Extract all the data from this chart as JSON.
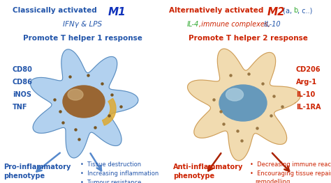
{
  "title_left_normal": "Classically activated ",
  "title_left_bold": "M1",
  "title_left_color": "#2255aa",
  "title_right_normal": "Alternatively activated ",
  "title_right_bold": "M2",
  "title_right_suffix_parts": [
    " (a, ",
    "b",
    ", c..)"
  ],
  "title_right_suffix_colors": [
    "#2255aa",
    "#33aa33",
    "#2255aa"
  ],
  "title_right_color": "#cc2200",
  "subtitle_left": "IFNγ & LPS",
  "subtitle_left_color": "#2255aa",
  "subtitle_right_parts": [
    "IL-4",
    ",immune complexes,",
    " IL-10"
  ],
  "subtitle_right_colors": [
    "#33aa33",
    "#cc2200",
    "#2255aa"
  ],
  "promote_left": "Promote T helper 1 response",
  "promote_left_color": "#2255aa",
  "promote_right": "Promote T helper 2 response",
  "promote_right_color": "#cc2200",
  "markers_left": [
    "CD80",
    "CD86",
    "iNOS",
    "TNF"
  ],
  "markers_left_color": "#2255aa",
  "markers_right": [
    "CD206",
    "Arg-1",
    "IL-10",
    "IL-1RA"
  ],
  "markers_right_color": "#cc2200",
  "phenotype_left_line1": "Pro-inflammatory",
  "phenotype_left_line2": "phenotype",
  "phenotype_left_color": "#2255aa",
  "phenotype_right_line1": "Anti-inflammatory",
  "phenotype_right_line2": "phenotype",
  "phenotype_right_color": "#cc2200",
  "effects_left": [
    "Tissue destruction",
    "Increasing inflammation",
    "Tumour resistance"
  ],
  "effects_left_color": "#2255aa",
  "effects_right": [
    "Decreasing immune reactions",
    "Encouraging tissue repair and",
    "remodelling"
  ],
  "effects_right_color": "#cc2200",
  "cell1_body_color": "#aaccee",
  "cell1_outline_color": "#5588bb",
  "cell1_nucleus_color": "#996633",
  "cell1_nucleus_hi_color": "#ccaa77",
  "cell1_golgi_color": "#ddaa33",
  "cell1_dot_color": "#775522",
  "cell2_body_color": "#f0d8a8",
  "cell2_outline_color": "#cc9955",
  "cell2_nucleus_color": "#6699bb",
  "cell2_nucleus_hi_color": "#aaccdd",
  "cell2_dot_color": "#997744",
  "arrow_left_color": "#5588cc",
  "arrow_right_color": "#aa2200",
  "bg_color": "#ffffff"
}
